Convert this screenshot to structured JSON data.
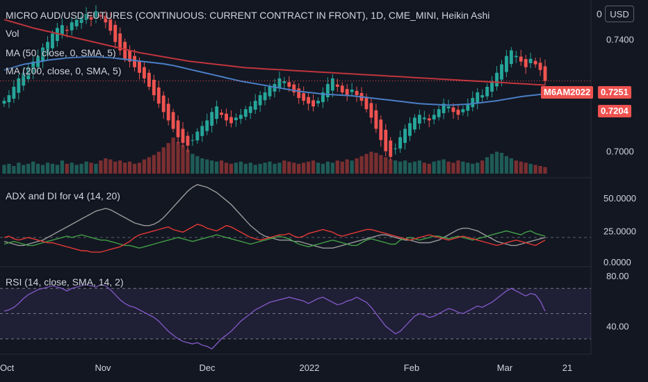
{
  "header": {
    "title": "MICRO AUD/USD FUTURES (CONTINUOUS: CURRENT CONTRACT IN FRONT), 1D, CME_MINI, Heikin Ashi",
    "vol": "Vol",
    "ma50": "MA (50, close, 0, SMA, 5)",
    "ma200": "MA (200, close, 0, SMA, 5)"
  },
  "scale_button": {
    "label": "USD",
    "zero": "0"
  },
  "tags": {
    "symbol": "M6AM2022",
    "price": "0.7251",
    "ma": "0.7204"
  },
  "adx_panel": {
    "label": "ADX and DI for v4 (14, 20)"
  },
  "rsi_panel": {
    "label": "RSI (14, close, SMA, 14, 2)"
  },
  "colors": {
    "up": "#26a69a",
    "down": "#ef5350",
    "ma50": "#4a7fc7",
    "ma200": "#c2353c",
    "adx": "#9b9b9b",
    "di_plus": "#43a047",
    "di_minus": "#e53935",
    "rsi": "#7e57c2"
  },
  "chart_data": [
    {
      "type": "candlestick",
      "x_ticks": [
        "Oct",
        "Nov",
        "Dec",
        "2022",
        "Feb",
        "Mar",
        "21"
      ],
      "y_ticks": [
        0.7,
        0.72,
        0.74
      ],
      "y_tick_labels": [
        "0.7000",
        "0.7400"
      ],
      "ylim": [
        0.692,
        0.752
      ],
      "last_price": 0.7251,
      "ma50_last": 0.7204,
      "closes": [
        0.718,
        0.72,
        0.723,
        0.726,
        0.728,
        0.73,
        0.732,
        0.734,
        0.737,
        0.739,
        0.742,
        0.744,
        0.745,
        0.743,
        0.746,
        0.747,
        0.748,
        0.749,
        0.747,
        0.75,
        0.748,
        0.746,
        0.743,
        0.739,
        0.736,
        0.733,
        0.732,
        0.73,
        0.728,
        0.726,
        0.723,
        0.72,
        0.717,
        0.714,
        0.711,
        0.708,
        0.705,
        0.703,
        0.702,
        0.704,
        0.707,
        0.709,
        0.711,
        0.714,
        0.716,
        0.713,
        0.711,
        0.71,
        0.712,
        0.713,
        0.715,
        0.716,
        0.718,
        0.72,
        0.721,
        0.723,
        0.724,
        0.726,
        0.725,
        0.723,
        0.721,
        0.719,
        0.718,
        0.717,
        0.716,
        0.718,
        0.721,
        0.724,
        0.726,
        0.723,
        0.721,
        0.72,
        0.722,
        0.72,
        0.718,
        0.715,
        0.712,
        0.708,
        0.704,
        0.7,
        0.698,
        0.701,
        0.705,
        0.708,
        0.71,
        0.712,
        0.713,
        0.712,
        0.711,
        0.713,
        0.715,
        0.717,
        0.716,
        0.714,
        0.713,
        0.715,
        0.717,
        0.719,
        0.721,
        0.72,
        0.723,
        0.725,
        0.728,
        0.731,
        0.734,
        0.736,
        0.734,
        0.732,
        0.73,
        0.733,
        0.731,
        0.729,
        0.7251
      ],
      "volume": [
        8,
        9,
        7,
        10,
        8,
        9,
        11,
        9,
        8,
        10,
        9,
        8,
        12,
        9,
        10,
        8,
        9,
        11,
        10,
        9,
        12,
        14,
        13,
        11,
        12,
        10,
        11,
        9,
        10,
        13,
        15,
        17,
        20,
        24,
        28,
        33,
        29,
        26,
        22,
        18,
        16,
        14,
        13,
        12,
        11,
        12,
        10,
        9,
        10,
        11,
        9,
        10,
        8,
        9,
        10,
        11,
        9,
        10,
        12,
        11,
        10,
        9,
        10,
        11,
        12,
        10,
        9,
        11,
        10,
        12,
        11,
        13,
        12,
        14,
        16,
        18,
        20,
        19,
        17,
        15,
        13,
        12,
        11,
        12,
        10,
        11,
        12,
        10,
        9,
        11,
        12,
        13,
        11,
        10,
        12,
        11,
        10,
        9,
        10,
        12,
        15,
        18,
        20,
        19,
        16,
        14,
        12,
        11,
        10,
        9,
        8,
        7,
        6
      ],
      "ma200": [
        0.747,
        0.7465,
        0.746,
        0.7455,
        0.745,
        0.7445,
        0.744,
        0.7436,
        0.7432,
        0.7428,
        0.7424,
        0.742,
        0.7416,
        0.7412,
        0.7408,
        0.7404,
        0.74,
        0.7396,
        0.7392,
        0.7388,
        0.7384,
        0.738,
        0.7376,
        0.7372,
        0.7368,
        0.7364,
        0.736,
        0.7356,
        0.7352,
        0.7349,
        0.7346,
        0.7343,
        0.734,
        0.7337,
        0.7334,
        0.7331,
        0.7328,
        0.7325,
        0.7322,
        0.732,
        0.7318,
        0.7316,
        0.7314,
        0.7312,
        0.731,
        0.7308,
        0.7306,
        0.7304,
        0.7302,
        0.73,
        0.7298,
        0.7297,
        0.7296,
        0.7295,
        0.7294,
        0.7293,
        0.7292,
        0.7291,
        0.729,
        0.7289,
        0.7288,
        0.7287,
        0.7286,
        0.7285,
        0.7284,
        0.7283,
        0.7282,
        0.7281,
        0.728,
        0.7279,
        0.7278,
        0.7277,
        0.7276,
        0.7275,
        0.7274,
        0.7273,
        0.7272,
        0.7271,
        0.727,
        0.7269,
        0.7268,
        0.7267,
        0.7266,
        0.7265,
        0.7264,
        0.7263,
        0.7262,
        0.7261,
        0.726,
        0.7259,
        0.7258,
        0.7257,
        0.7256,
        0.7255,
        0.7254,
        0.7253,
        0.7252,
        0.7251,
        0.725,
        0.7249,
        0.7248,
        0.7247,
        0.7246,
        0.7245,
        0.7244,
        0.7243,
        0.7242,
        0.7241,
        0.724,
        0.7239,
        0.7238,
        0.7237,
        0.7236
      ],
      "ma50": [
        0.729,
        0.7295,
        0.73,
        0.7305,
        0.731,
        0.7313,
        0.7316,
        0.7319,
        0.7322,
        0.7325,
        0.7327,
        0.7329,
        0.7331,
        0.7333,
        0.7334,
        0.7335,
        0.7336,
        0.7337,
        0.7337,
        0.7337,
        0.7336,
        0.7335,
        0.7334,
        0.7332,
        0.733,
        0.7328,
        0.7326,
        0.7324,
        0.7322,
        0.732,
        0.7318,
        0.7316,
        0.7314,
        0.7312,
        0.7309,
        0.7306,
        0.7302,
        0.7298,
        0.7294,
        0.729,
        0.7286,
        0.7282,
        0.7278,
        0.7274,
        0.727,
        0.7266,
        0.7262,
        0.7258,
        0.7254,
        0.725,
        0.7247,
        0.7244,
        0.7241,
        0.7238,
        0.7235,
        0.7232,
        0.7229,
        0.7226,
        0.7223,
        0.722,
        0.7217,
        0.7214,
        0.7212,
        0.721,
        0.7208,
        0.7206,
        0.7204,
        0.7203,
        0.7202,
        0.7201,
        0.72,
        0.7199,
        0.7198,
        0.7196,
        0.7194,
        0.7192,
        0.719,
        0.7188,
        0.7186,
        0.7184,
        0.7182,
        0.718,
        0.7178,
        0.7176,
        0.7174,
        0.7172,
        0.717,
        0.7169,
        0.7168,
        0.7167,
        0.7166,
        0.7165,
        0.7165,
        0.7165,
        0.7166,
        0.7167,
        0.7168,
        0.717,
        0.7172,
        0.7174,
        0.7176,
        0.7178,
        0.718,
        0.7183,
        0.7186,
        0.7189,
        0.7192,
        0.7195,
        0.7197,
        0.7199,
        0.7201,
        0.7203,
        0.7204
      ]
    },
    {
      "type": "line",
      "name": "ADX and DI",
      "y_ticks": [
        "50.0000",
        "25.0000",
        "0.0000"
      ],
      "ylim": [
        0,
        62
      ],
      "adx": [
        17,
        16,
        15,
        14,
        14,
        15,
        16,
        17,
        18,
        20,
        22,
        24,
        26,
        28,
        30,
        32,
        34,
        36,
        38,
        40,
        41,
        42,
        41,
        39,
        37,
        35,
        33,
        31,
        30,
        29,
        29,
        30,
        32,
        35,
        39,
        43,
        47,
        51,
        55,
        58,
        60,
        59,
        58,
        56,
        54,
        51,
        48,
        45,
        41,
        37,
        33,
        29,
        26,
        23,
        21,
        20,
        19,
        18,
        18,
        18,
        17,
        17,
        16,
        15,
        14,
        13,
        12,
        12,
        12,
        13,
        14,
        15,
        16,
        17,
        18,
        19,
        20,
        21,
        22,
        22,
        21,
        20,
        19,
        18,
        18,
        17,
        16,
        16,
        16,
        17,
        18,
        20,
        22,
        24,
        26,
        27,
        27,
        26,
        25,
        23,
        21,
        19,
        17,
        16,
        15,
        14,
        14,
        15,
        16,
        17,
        18,
        19,
        20
      ],
      "di_plus": [
        15,
        16,
        17,
        16,
        15,
        14,
        14,
        15,
        16,
        17,
        18,
        19,
        20,
        21,
        20,
        21,
        22,
        21,
        20,
        19,
        18,
        18,
        17,
        16,
        15,
        14,
        14,
        13,
        12,
        13,
        14,
        15,
        16,
        17,
        18,
        19,
        20,
        19,
        18,
        17,
        18,
        19,
        20,
        21,
        22,
        21,
        20,
        19,
        18,
        17,
        16,
        15,
        16,
        17,
        18,
        19,
        20,
        21,
        20,
        19,
        17,
        15,
        14,
        13,
        14,
        15,
        16,
        17,
        18,
        17,
        16,
        15,
        14,
        14,
        16,
        18,
        19,
        18,
        17,
        16,
        15,
        15,
        18,
        19,
        20,
        19,
        18,
        19,
        20,
        21,
        21,
        20,
        19,
        20,
        21,
        20,
        19,
        18,
        19,
        20,
        21,
        22,
        23,
        24,
        25,
        24,
        23,
        22,
        24,
        25,
        23,
        22,
        21
      ],
      "di_minus": [
        20,
        21,
        19,
        18,
        19,
        20,
        19,
        18,
        17,
        16,
        16,
        15,
        14,
        13,
        12,
        11,
        10,
        10,
        9,
        9,
        9,
        10,
        11,
        12,
        13,
        15,
        17,
        20,
        22,
        23,
        24,
        25,
        26,
        27,
        28,
        26,
        25,
        24,
        26,
        28,
        30,
        29,
        27,
        26,
        25,
        27,
        29,
        28,
        26,
        24,
        22,
        20,
        19,
        18,
        19,
        20,
        21,
        22,
        22,
        23,
        21,
        20,
        21,
        23,
        24,
        25,
        26,
        25,
        24,
        22,
        21,
        22,
        23,
        24,
        25,
        26,
        26,
        25,
        24,
        23,
        22,
        21,
        20,
        19,
        18,
        19,
        20,
        21,
        22,
        21,
        20,
        19,
        18,
        19,
        20,
        21,
        20,
        19,
        18,
        17,
        16,
        15,
        14,
        15,
        16,
        17,
        18,
        17,
        16,
        15,
        14,
        16,
        18
      ]
    },
    {
      "type": "line",
      "name": "RSI",
      "y_ticks": [
        "80.00",
        "40.00"
      ],
      "ylim": [
        20,
        85
      ],
      "band": [
        30,
        70
      ],
      "rsi": [
        52,
        53,
        55,
        58,
        62,
        65,
        67,
        69,
        70,
        71,
        72,
        71,
        70,
        68,
        70,
        71,
        72,
        73,
        72,
        71,
        73,
        72,
        69,
        65,
        61,
        58,
        56,
        55,
        53,
        51,
        49,
        47,
        44,
        40,
        36,
        33,
        30,
        28,
        27,
        26,
        27,
        25,
        24,
        22,
        26,
        30,
        33,
        36,
        40,
        44,
        47,
        50,
        53,
        55,
        57,
        59,
        60,
        61,
        62,
        63,
        62,
        61,
        60,
        58,
        60,
        62,
        63,
        61,
        59,
        57,
        58,
        60,
        61,
        63,
        61,
        59,
        55,
        50,
        45,
        40,
        37,
        34,
        36,
        40,
        44,
        48,
        50,
        49,
        47,
        48,
        50,
        52,
        54,
        53,
        51,
        50,
        52,
        54,
        56,
        55,
        57,
        59,
        62,
        65,
        68,
        70,
        68,
        66,
        64,
        66,
        65,
        60,
        52
      ]
    }
  ]
}
